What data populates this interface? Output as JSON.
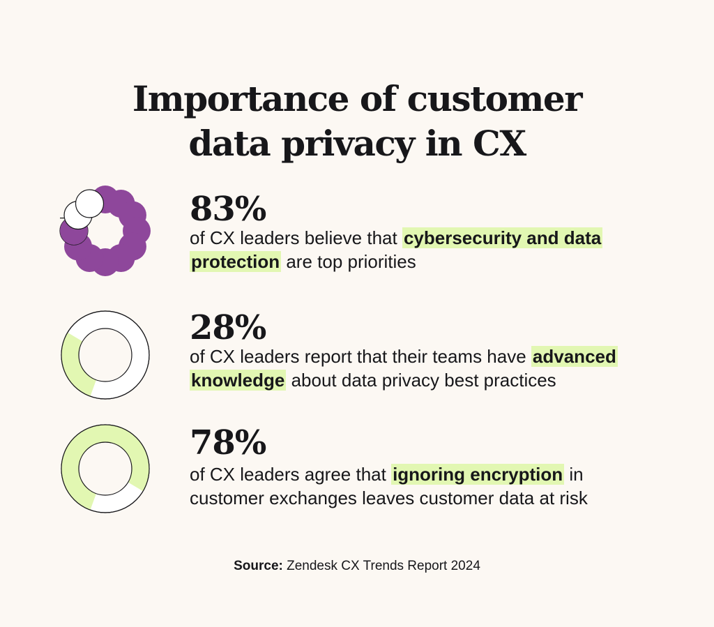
{
  "title": {
    "line1": "Importance of customer",
    "line2": "data privacy in CX"
  },
  "stats": [
    {
      "pct": "83%",
      "pre": "of CX leaders believe that ",
      "highlight_line1": "cybersecurity and data",
      "highlight_line2": "protection",
      "post": " are top priorities",
      "value": 83,
      "style": "segmented-circles",
      "color": "#8e479b"
    },
    {
      "pct": "28%",
      "pre": "of CX leaders report that their teams have ",
      "highlight_line1": "advanced",
      "highlight_line2": "knowledge",
      "post": " about data privacy best practices",
      "value": 28,
      "style": "donut",
      "color": "#e2f7b2"
    },
    {
      "pct": "78%",
      "pre": "of CX leaders agree that ",
      "highlight": "ignoring encryption",
      "post_line1": " in",
      "post_line2": "customer exchanges leaves customer data at risk",
      "value": 78,
      "style": "donut",
      "color": "#e2f7b2"
    }
  ],
  "source": {
    "label": "Source:",
    "text": " Zendesk CX Trends Report 2024"
  },
  "chart_data": {
    "type": "pie",
    "title": "Importance of customer data privacy in CX",
    "categories": [
      "cybersecurity and data protection are top priorities",
      "advanced knowledge about data privacy best practices",
      "ignoring encryption in customer exchanges leaves customer data at risk"
    ],
    "values": [
      83,
      28,
      78
    ],
    "unit": "%"
  },
  "colors": {
    "background": "#fcf8f3",
    "purple": "#8e479b",
    "lime": "#e2f7b2",
    "ink": "#17171a"
  }
}
